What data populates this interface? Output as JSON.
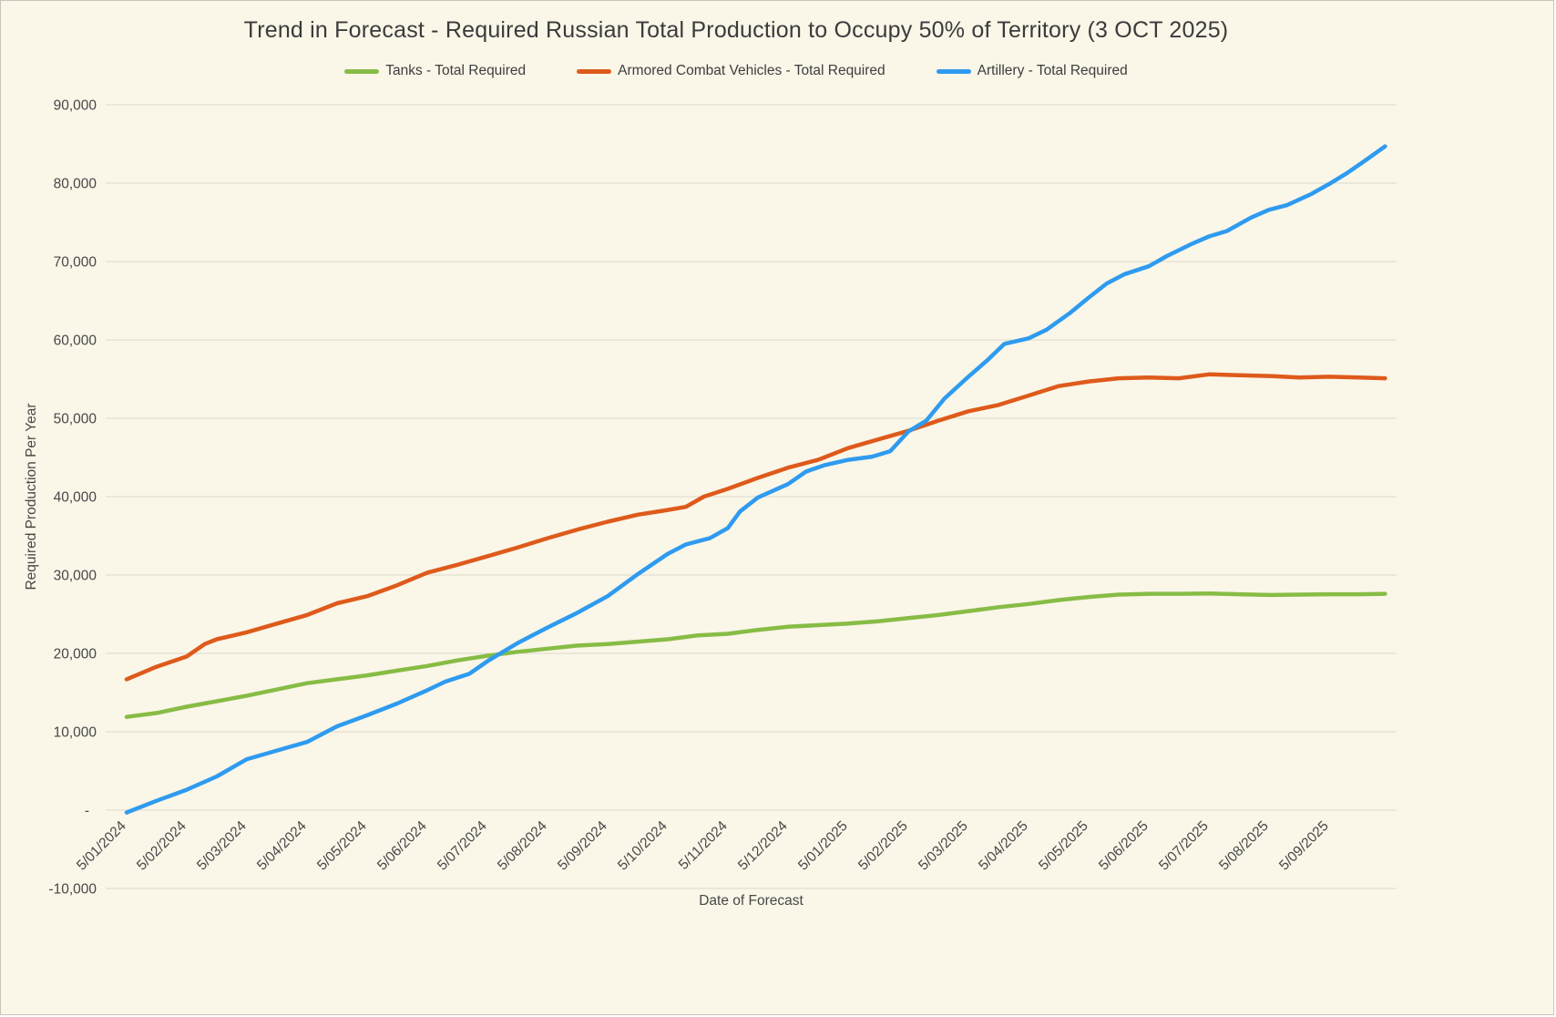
{
  "page": {
    "background": "#faf6e8",
    "border_color": "#c7c4ba"
  },
  "chart_data": {
    "type": "line",
    "title": "Trend in Forecast - Required Russian Total Production to Occupy 50% of Territory (3 OCT 2025)",
    "xlabel": "Date of Forecast",
    "ylabel": "Required Production Per Year",
    "legend_position": "top",
    "grid": "horizontal",
    "grid_color": "#dcd9cd",
    "ylim": [
      -10000,
      90000
    ],
    "x_unit": "months since 5/01/2024; x values in series points are month offsets, data extends to 3 OCT 2025",
    "x_tick_labels": [
      "5/01/2024",
      "5/02/2024",
      "5/03/2024",
      "5/04/2024",
      "5/05/2024",
      "5/06/2024",
      "5/07/2024",
      "5/08/2024",
      "5/09/2024",
      "5/10/2024",
      "5/11/2024",
      "5/12/2024",
      "5/01/2025",
      "5/02/2025",
      "5/03/2025",
      "5/04/2025",
      "5/05/2025",
      "5/06/2025",
      "5/07/2025",
      "5/08/2025",
      "5/09/2025"
    ],
    "y_ticks": [
      {
        "value": 90000,
        "label": "90,000"
      },
      {
        "value": 80000,
        "label": "80,000"
      },
      {
        "value": 70000,
        "label": "70,000"
      },
      {
        "value": 60000,
        "label": "60,000"
      },
      {
        "value": 50000,
        "label": "50,000"
      },
      {
        "value": 40000,
        "label": "40,000"
      },
      {
        "value": 30000,
        "label": "30,000"
      },
      {
        "value": 20000,
        "label": "20,000"
      },
      {
        "value": 10000,
        "label": "10,000"
      },
      {
        "value": 0,
        "label": "-"
      },
      {
        "value": -10000,
        "label": "-10,000"
      }
    ],
    "series": [
      {
        "name": "Tanks - Total Required",
        "color": "#87bc45",
        "points": [
          [
            0,
            11900
          ],
          [
            0.5,
            12400
          ],
          [
            1,
            13200
          ],
          [
            1.5,
            13900
          ],
          [
            2,
            14600
          ],
          [
            2.5,
            15400
          ],
          [
            3,
            16200
          ],
          [
            3.5,
            16700
          ],
          [
            4,
            17200
          ],
          [
            4.5,
            17800
          ],
          [
            5,
            18400
          ],
          [
            5.5,
            19100
          ],
          [
            6,
            19700
          ],
          [
            6.5,
            20200
          ],
          [
            7,
            20600
          ],
          [
            7.5,
            21000
          ],
          [
            8,
            21200
          ],
          [
            8.5,
            21500
          ],
          [
            9,
            21800
          ],
          [
            9.5,
            22300
          ],
          [
            10,
            22500
          ],
          [
            10.5,
            23000
          ],
          [
            11,
            23400
          ],
          [
            11.5,
            23600
          ],
          [
            12,
            23800
          ],
          [
            12.5,
            24100
          ],
          [
            13,
            24500
          ],
          [
            13.5,
            24900
          ],
          [
            14,
            25400
          ],
          [
            14.5,
            25900
          ],
          [
            15,
            26300
          ],
          [
            15.5,
            26800
          ],
          [
            16,
            27200
          ],
          [
            16.5,
            27500
          ],
          [
            17,
            27600
          ],
          [
            17.5,
            27600
          ],
          [
            18,
            27650
          ],
          [
            18.5,
            27550
          ],
          [
            19,
            27450
          ],
          [
            19.5,
            27500
          ],
          [
            20,
            27550
          ],
          [
            20.5,
            27550
          ],
          [
            20.93,
            27600
          ]
        ]
      },
      {
        "name": "Armored Combat Vehicles - Total Required",
        "color": "#de5a1b",
        "points": [
          [
            0,
            16700
          ],
          [
            0.5,
            18300
          ],
          [
            1,
            19600
          ],
          [
            1.3,
            21200
          ],
          [
            1.5,
            21800
          ],
          [
            2,
            22700
          ],
          [
            2.5,
            23800
          ],
          [
            3,
            24900
          ],
          [
            3.5,
            26400
          ],
          [
            4,
            27300
          ],
          [
            4.5,
            28700
          ],
          [
            5,
            30300
          ],
          [
            5.5,
            31300
          ],
          [
            6,
            32400
          ],
          [
            6.5,
            33500
          ],
          [
            7,
            34700
          ],
          [
            7.5,
            35800
          ],
          [
            8,
            36800
          ],
          [
            8.5,
            37700
          ],
          [
            9,
            38300
          ],
          [
            9.3,
            38700
          ],
          [
            9.6,
            40000
          ],
          [
            10,
            41000
          ],
          [
            10.5,
            42400
          ],
          [
            11,
            43700
          ],
          [
            11.5,
            44700
          ],
          [
            12,
            46200
          ],
          [
            12.5,
            47300
          ],
          [
            13,
            48400
          ],
          [
            13.5,
            49700
          ],
          [
            14,
            50900
          ],
          [
            14.5,
            51700
          ],
          [
            15,
            52900
          ],
          [
            15.5,
            54100
          ],
          [
            16,
            54700
          ],
          [
            16.5,
            55100
          ],
          [
            17,
            55200
          ],
          [
            17.5,
            55100
          ],
          [
            18,
            55600
          ],
          [
            18.5,
            55500
          ],
          [
            19,
            55400
          ],
          [
            19.5,
            55200
          ],
          [
            20,
            55300
          ],
          [
            20.5,
            55200
          ],
          [
            20.93,
            55100
          ]
        ]
      },
      {
        "name": "Artillery - Total Required",
        "color": "#2e9bf0",
        "points": [
          [
            0,
            -300
          ],
          [
            0.5,
            1200
          ],
          [
            1,
            2600
          ],
          [
            1.5,
            4300
          ],
          [
            2,
            6500
          ],
          [
            2.5,
            7600
          ],
          [
            3,
            8700
          ],
          [
            3.5,
            10700
          ],
          [
            4,
            12100
          ],
          [
            4.5,
            13600
          ],
          [
            5,
            15300
          ],
          [
            5.3,
            16400
          ],
          [
            5.7,
            17400
          ],
          [
            6,
            19000
          ],
          [
            6.5,
            21300
          ],
          [
            7,
            23300
          ],
          [
            7.5,
            25200
          ],
          [
            8,
            27300
          ],
          [
            8.5,
            30100
          ],
          [
            9,
            32700
          ],
          [
            9.3,
            33900
          ],
          [
            9.7,
            34700
          ],
          [
            10,
            36000
          ],
          [
            10.2,
            38100
          ],
          [
            10.5,
            39900
          ],
          [
            11,
            41600
          ],
          [
            11.3,
            43200
          ],
          [
            11.6,
            44000
          ],
          [
            12,
            44700
          ],
          [
            12.4,
            45100
          ],
          [
            12.7,
            45800
          ],
          [
            13,
            48300
          ],
          [
            13.3,
            49700
          ],
          [
            13.6,
            52500
          ],
          [
            14,
            55300
          ],
          [
            14.3,
            57300
          ],
          [
            14.6,
            59500
          ],
          [
            15,
            60200
          ],
          [
            15.3,
            61300
          ],
          [
            15.7,
            63500
          ],
          [
            16,
            65400
          ],
          [
            16.3,
            67200
          ],
          [
            16.6,
            68400
          ],
          [
            17,
            69400
          ],
          [
            17.3,
            70700
          ],
          [
            17.7,
            72200
          ],
          [
            18,
            73200
          ],
          [
            18.3,
            73900
          ],
          [
            18.7,
            75600
          ],
          [
            19,
            76600
          ],
          [
            19.3,
            77200
          ],
          [
            19.7,
            78600
          ],
          [
            20,
            79900
          ],
          [
            20.3,
            81300
          ],
          [
            20.6,
            82900
          ],
          [
            20.93,
            84700
          ]
        ]
      }
    ]
  }
}
